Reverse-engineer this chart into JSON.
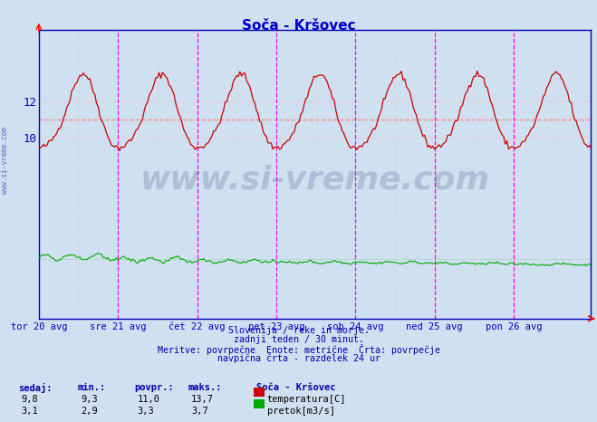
{
  "title": "Soča - Kršovec",
  "title_color": "#0000cc",
  "bg_color": "#cfe0f0",
  "grid_color": "#ffaaaa",
  "vline_color": "#ff00ff",
  "border_color": "#0000bb",
  "x_label_color": "#0000cc",
  "text_color": "#0000aa",
  "watermark_text": "www.si-vreme.com",
  "watermark_color": "#1a2a6c",
  "watermark_alpha": 0.18,
  "temp_color": "#cc0000",
  "flow_color": "#00aa00",
  "avg_temp_color": "#ff8888",
  "avg_flow_color": "#88cc88",
  "x_tick_labels": [
    "tor 20 avg",
    "sre 21 avg",
    "čet 22 avg",
    "pet 23 avg",
    "sob 24 avg",
    "ned 25 avg",
    "pon 26 avg"
  ],
  "x_tick_positions": [
    0,
    48,
    96,
    144,
    192,
    240,
    288
  ],
  "n_points": 336,
  "temp_min": 9.3,
  "temp_max": 13.7,
  "temp_avg": 11.0,
  "temp_current": 9.8,
  "flow_min": 2.9,
  "flow_max": 3.7,
  "flow_avg": 3.3,
  "flow_current": 3.1,
  "ylim_min": 0.0,
  "ylim_max": 16.0,
  "yticks": [
    10,
    12
  ],
  "subtitle_lines": [
    "Slovenija / reke in morje.",
    "zadnji teden / 30 minut.",
    "Meritve: povrpečne  Enote: metrične  Črta: povrpečje",
    "navpična črta - razdelek 24 ur"
  ],
  "table_headers": [
    "sedaj:",
    "min.:",
    "povpr.:",
    "maks.:",
    "Soča - Kršovec"
  ],
  "table_row1": [
    "9,8",
    "9,3",
    "11,0",
    "13,7"
  ],
  "table_row2": [
    "3,1",
    "2,9",
    "3,3",
    "3,7"
  ],
  "table_label1": "temperatura[C]",
  "table_label2": "pretok[m3/s]",
  "side_text": "www.si-vreme.com"
}
